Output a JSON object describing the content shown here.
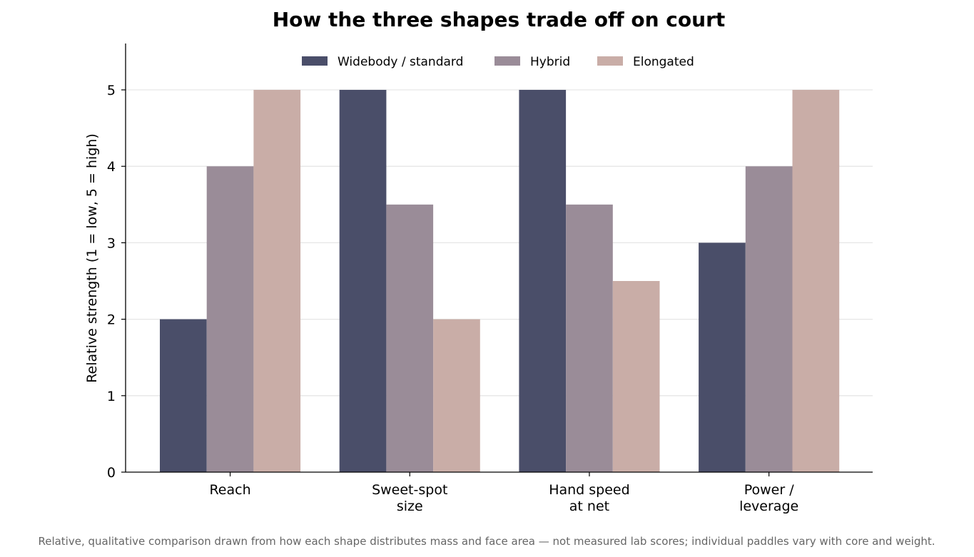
{
  "chart_data": {
    "type": "bar",
    "title": "How the three shapes trade off on court",
    "xlabel": "",
    "ylabel": "Relative strength (1 = low, 5 = high)",
    "categories": [
      "Reach",
      "Sweet-spot\nsize",
      "Hand speed\nat net",
      "Power /\nleverage"
    ],
    "series": [
      {
        "name": "Widebody / standard",
        "color": "#4a4e69",
        "values": [
          2,
          5,
          5,
          3
        ]
      },
      {
        "name": "Hybrid",
        "color": "#9a8c98",
        "values": [
          4,
          3.5,
          3.5,
          4
        ]
      },
      {
        "name": "Elongated",
        "color": "#c9ada7",
        "values": [
          5,
          2,
          2.5,
          5
        ]
      }
    ],
    "ylim": [
      0,
      5.6
    ],
    "yticks": [
      0,
      1,
      2,
      3,
      4,
      5
    ],
    "grid": "horizontal",
    "legend_position": "top-center",
    "footnote": "Relative, qualitative comparison drawn from how each shape distributes mass and face area — not measured lab scores; individual paddles vary with core and weight."
  }
}
